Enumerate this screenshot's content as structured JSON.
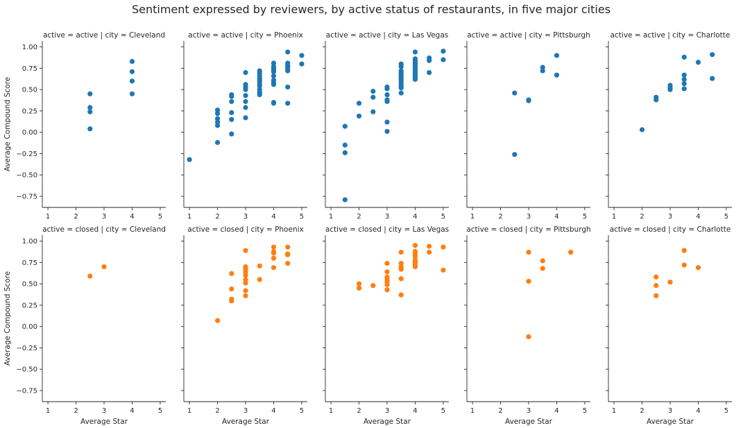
{
  "figure": {
    "title": "Sentiment expressed by reviewers, by active status of restaurants, in five major cities"
  },
  "colors": {
    "active": "#1f77b4",
    "closed": "#ff7f0e",
    "axis": "#262626",
    "background": "#ffffff"
  },
  "chart_data": [
    {
      "type": "scatter",
      "title": "active = active | city = Cleveland",
      "xlabel": "",
      "ylabel": "Average Compound Score",
      "xlim": [
        0.8,
        5.2
      ],
      "ylim": [
        -0.88,
        1.07
      ],
      "xticks": [
        "1",
        "2",
        "3",
        "4",
        "5"
      ],
      "yticks": [
        "1.00",
        "0.75",
        "0.50",
        "0.25",
        "0.00",
        "−0.25",
        "−0.50",
        "−0.75"
      ],
      "series": [
        {
          "color": "active",
          "x": [
            2.5,
            2.5,
            2.5,
            2.5,
            4,
            4,
            4,
            4
          ],
          "y": [
            0.45,
            0.29,
            0.24,
            0.04,
            0.83,
            0.71,
            0.6,
            0.45
          ]
        }
      ]
    },
    {
      "type": "scatter",
      "title": "active = active | city = Phoenix",
      "xlabel": "",
      "ylabel": "",
      "xlim": [
        0.8,
        5.2
      ],
      "ylim": [
        -0.88,
        1.07
      ],
      "xticks": [
        "1",
        "2",
        "3",
        "4",
        "5"
      ],
      "yticks": [],
      "series": [
        {
          "color": "active",
          "x": [
            1,
            2,
            2,
            2,
            2,
            2,
            2,
            2.5,
            2.5,
            2.5,
            2.5,
            2.5,
            2.5,
            3,
            3,
            3,
            3,
            3,
            3,
            3,
            3,
            3.5,
            3.5,
            3.5,
            3.5,
            3.5,
            3.5,
            3.5,
            3.5,
            3.5,
            3.5,
            3.5,
            3.5,
            4,
            4,
            4,
            4,
            4,
            4,
            4,
            4,
            4,
            4,
            4,
            4.5,
            4.5,
            4.5,
            4.5,
            4.5,
            4.5,
            4.5,
            4.5,
            5,
            5
          ],
          "y": [
            -0.32,
            0.26,
            0.22,
            0.16,
            0.12,
            0.08,
            -0.12,
            0.44,
            0.42,
            0.36,
            0.23,
            0.15,
            -0.02,
            0.7,
            0.56,
            0.53,
            0.5,
            0.43,
            0.36,
            0.29,
            0.17,
            0.72,
            0.69,
            0.66,
            0.63,
            0.61,
            0.59,
            0.56,
            0.54,
            0.5,
            0.47,
            0.45,
            0.44,
            0.81,
            0.77,
            0.75,
            0.73,
            0.71,
            0.66,
            0.61,
            0.58,
            0.56,
            0.35,
            0.34,
            0.94,
            0.81,
            0.78,
            0.76,
            0.73,
            0.72,
            0.53,
            0.34,
            0.9,
            0.8
          ]
        }
      ]
    },
    {
      "type": "scatter",
      "title": "active = active | city = Las Vegas",
      "xlabel": "",
      "ylabel": "",
      "xlim": [
        0.8,
        5.2
      ],
      "ylim": [
        -0.88,
        1.07
      ],
      "xticks": [
        "1",
        "2",
        "3",
        "4",
        "5"
      ],
      "yticks": [],
      "series": [
        {
          "color": "active",
          "x": [
            1.5,
            1.5,
            1.5,
            1.5,
            2,
            2,
            2.5,
            2.5,
            2.5,
            3,
            3,
            3,
            3,
            3,
            3,
            3,
            3.5,
            3.5,
            3.5,
            3.5,
            3.5,
            3.5,
            3.5,
            3.5,
            3.5,
            3.5,
            3.5,
            3.5,
            3.5,
            4,
            4,
            4,
            4,
            4,
            4,
            4,
            4,
            4,
            4,
            4,
            4,
            4,
            4,
            4,
            4,
            4.5,
            4.5,
            4.5,
            5,
            5
          ],
          "y": [
            0.07,
            -0.15,
            -0.24,
            -0.79,
            0.34,
            0.19,
            0.48,
            0.41,
            0.24,
            0.53,
            0.51,
            0.44,
            0.38,
            0.36,
            0.12,
            0.01,
            0.8,
            0.77,
            0.72,
            0.7,
            0.68,
            0.66,
            0.64,
            0.62,
            0.6,
            0.57,
            0.54,
            0.52,
            0.46,
            0.94,
            0.86,
            0.84,
            0.82,
            0.8,
            0.78,
            0.76,
            0.74,
            0.72,
            0.7,
            0.68,
            0.67,
            0.66,
            0.65,
            0.63,
            0.62,
            0.87,
            0.84,
            0.7,
            0.95,
            0.85
          ]
        }
      ]
    },
    {
      "type": "scatter",
      "title": "active = active | city = Pittsburgh",
      "xlabel": "",
      "ylabel": "",
      "xlim": [
        0.8,
        5.2
      ],
      "ylim": [
        -0.88,
        1.07
      ],
      "xticks": [
        "1",
        "2",
        "3",
        "4",
        "5"
      ],
      "yticks": [],
      "series": [
        {
          "color": "active",
          "x": [
            2.5,
            2.5,
            3,
            3,
            3.5,
            3.5,
            4,
            4
          ],
          "y": [
            0.46,
            -0.26,
            0.38,
            0.37,
            0.76,
            0.72,
            0.9,
            0.67
          ]
        }
      ]
    },
    {
      "type": "scatter",
      "title": "active = active | city = Charlotte",
      "xlabel": "",
      "ylabel": "",
      "xlim": [
        0.8,
        5.2
      ],
      "ylim": [
        -0.88,
        1.07
      ],
      "xticks": [
        "1",
        "2",
        "3",
        "4",
        "5"
      ],
      "yticks": [],
      "series": [
        {
          "color": "active",
          "x": [
            2,
            2.5,
            2.5,
            3,
            3,
            3,
            3.5,
            3.5,
            3.5,
            3.5,
            3.5,
            4,
            4.5,
            4.5
          ],
          "y": [
            0.03,
            0.41,
            0.38,
            0.55,
            0.52,
            0.5,
            0.88,
            0.67,
            0.62,
            0.57,
            0.51,
            0.82,
            0.91,
            0.63
          ]
        }
      ]
    },
    {
      "type": "scatter",
      "title": "active = closed | city = Cleveland",
      "xlabel": "Average Star",
      "ylabel": "Average Compound Score",
      "xlim": [
        0.8,
        5.2
      ],
      "ylim": [
        -0.88,
        1.07
      ],
      "xticks": [
        "1",
        "2",
        "3",
        "4",
        "5"
      ],
      "yticks": [
        "1.00",
        "0.75",
        "0.50",
        "0.25",
        "0.00",
        "−0.25",
        "−0.50",
        "−0.75"
      ],
      "series": [
        {
          "color": "closed",
          "x": [
            2.5,
            3
          ],
          "y": [
            0.59,
            0.7
          ]
        }
      ]
    },
    {
      "type": "scatter",
      "title": "active = closed | city = Phoenix",
      "xlabel": "Average Star",
      "ylabel": "",
      "xlim": [
        0.8,
        5.2
      ],
      "ylim": [
        -0.88,
        1.07
      ],
      "xticks": [
        "1",
        "2",
        "3",
        "4",
        "5"
      ],
      "yticks": [],
      "series": [
        {
          "color": "closed",
          "x": [
            2,
            2.5,
            2.5,
            2.5,
            2.5,
            3,
            3,
            3,
            3,
            3,
            3,
            3,
            3,
            3,
            3.5,
            3.5,
            4,
            4,
            4,
            4,
            4,
            4.5,
            4.5,
            4.5,
            4.5
          ],
          "y": [
            0.07,
            0.62,
            0.44,
            0.32,
            0.3,
            0.89,
            0.7,
            0.67,
            0.64,
            0.6,
            0.55,
            0.51,
            0.42,
            0.36,
            0.71,
            0.55,
            0.93,
            0.88,
            0.86,
            0.8,
            0.69,
            0.93,
            0.85,
            0.84,
            0.74
          ]
        }
      ]
    },
    {
      "type": "scatter",
      "title": "active = closed | city = Las Vegas",
      "xlabel": "Average Star",
      "ylabel": "",
      "xlim": [
        0.8,
        5.2
      ],
      "ylim": [
        -0.88,
        1.07
      ],
      "xticks": [
        "1",
        "2",
        "3",
        "4",
        "5"
      ],
      "yticks": [],
      "series": [
        {
          "color": "closed",
          "x": [
            2,
            2,
            2.5,
            3,
            3,
            3,
            3,
            3,
            3,
            3,
            3.5,
            3.5,
            3.5,
            3.5,
            3.5,
            3.5,
            4,
            4,
            4,
            4,
            4,
            4,
            4,
            4,
            4,
            4.5,
            4.5,
            5,
            5
          ],
          "y": [
            0.5,
            0.45,
            0.48,
            0.74,
            0.64,
            0.58,
            0.55,
            0.52,
            0.49,
            0.43,
            0.87,
            0.74,
            0.7,
            0.67,
            0.56,
            0.37,
            0.95,
            0.88,
            0.85,
            0.82,
            0.78,
            0.76,
            0.74,
            0.72,
            0.7,
            0.94,
            0.87,
            0.93,
            0.66
          ]
        }
      ]
    },
    {
      "type": "scatter",
      "title": "active = closed | city = Pittsburgh",
      "xlabel": "Average Star",
      "ylabel": "",
      "xlim": [
        0.8,
        5.2
      ],
      "ylim": [
        -0.88,
        1.07
      ],
      "xticks": [
        "1",
        "2",
        "3",
        "4",
        "5"
      ],
      "yticks": [],
      "series": [
        {
          "color": "closed",
          "x": [
            3,
            3,
            3,
            3.5,
            3.5,
            4.5
          ],
          "y": [
            0.87,
            0.53,
            -0.12,
            0.77,
            0.68,
            0.87
          ]
        }
      ]
    },
    {
      "type": "scatter",
      "title": "active = closed | city = Charlotte",
      "xlabel": "Average Star",
      "ylabel": "",
      "xlim": [
        0.8,
        5.2
      ],
      "ylim": [
        -0.88,
        1.07
      ],
      "xticks": [
        "1",
        "2",
        "3",
        "4",
        "5"
      ],
      "yticks": [],
      "series": [
        {
          "color": "closed",
          "x": [
            2.5,
            2.5,
            2.5,
            3,
            3.5,
            3.5,
            4
          ],
          "y": [
            0.58,
            0.48,
            0.36,
            0.52,
            0.89,
            0.72,
            0.69
          ]
        }
      ]
    }
  ]
}
